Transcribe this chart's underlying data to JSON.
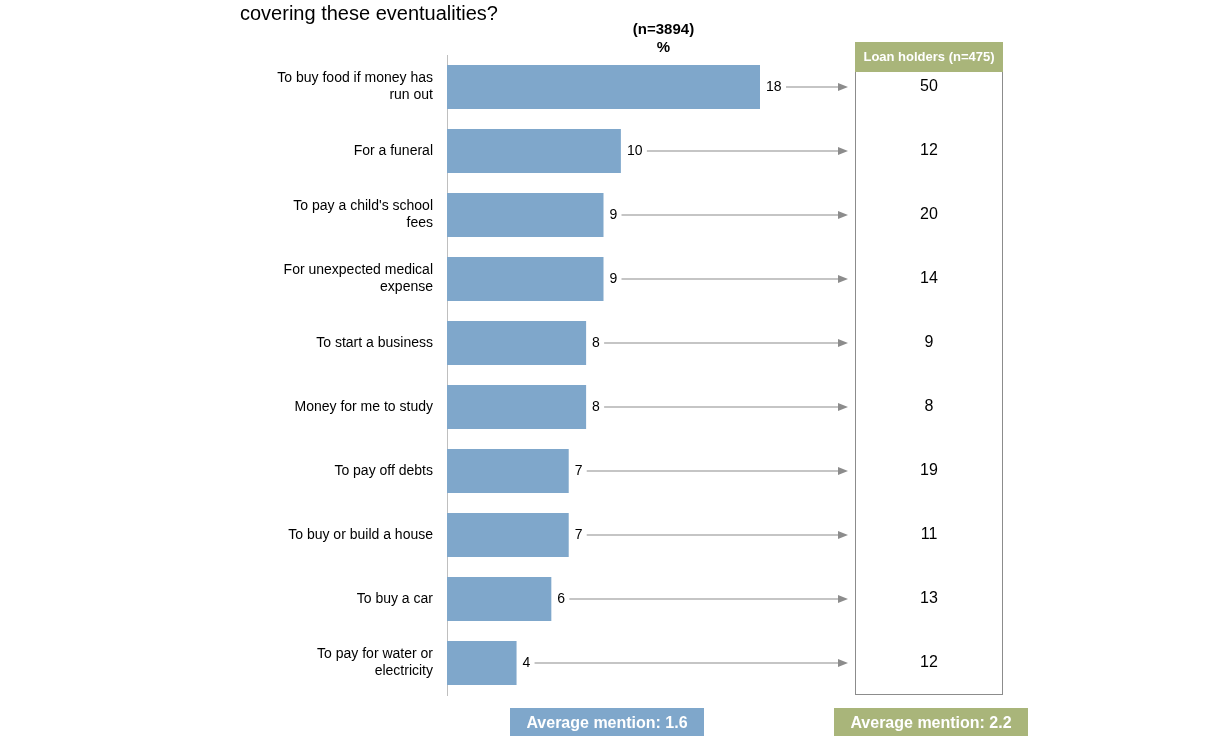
{
  "chart_data": {
    "type": "bar",
    "orientation": "horizontal",
    "title": "covering these eventualities?",
    "categories": [
      "To buy food if money has run out",
      "For a funeral",
      "To pay a child's school fees",
      "For unexpected medical expense",
      "To start a business",
      "Money for me to study",
      "To pay off debts",
      "To buy or build a house",
      "To buy a car",
      "To pay for water or electricity"
    ],
    "values": [
      18,
      10,
      9,
      9,
      8,
      8,
      7,
      7,
      6,
      4
    ],
    "color": "#7fa7cb",
    "data_labels": true,
    "grid": false,
    "legend": false,
    "tick_labels": "y",
    "annotations": [
      "(n=3894)",
      "%",
      "Loan holders (n=475)",
      "Average mention: 1.6",
      "Average mention: 2.2",
      "50",
      "12",
      "20",
      "14",
      "9",
      "8",
      "19",
      "11",
      "13",
      "12"
    ]
  }
}
